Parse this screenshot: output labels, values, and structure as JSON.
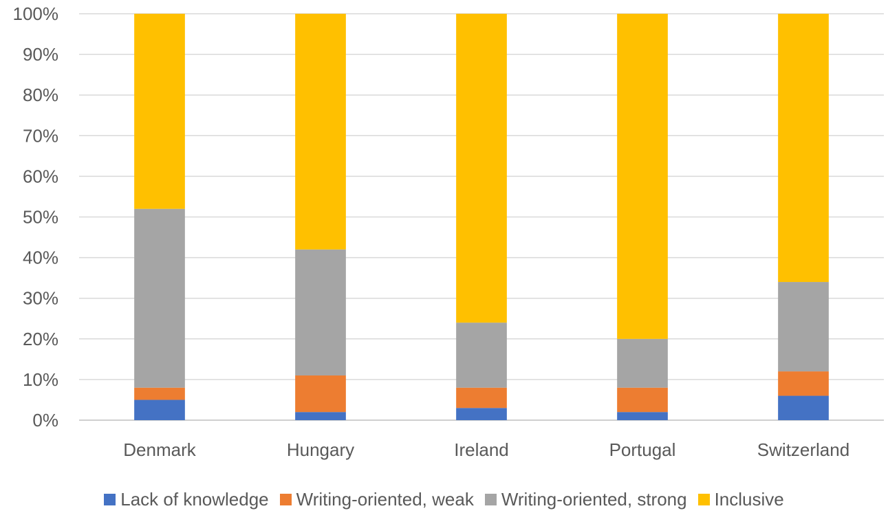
{
  "chart_data": {
    "type": "bar",
    "stacked": true,
    "percent": true,
    "title": "",
    "xlabel": "",
    "ylabel": "",
    "categories": [
      "Denmark",
      "Hungary",
      "Ireland",
      "Portugal",
      "Switzerland"
    ],
    "series": [
      {
        "name": "Lack of knowledge",
        "color": "#4472C4",
        "values": [
          5,
          2,
          3,
          2,
          6
        ]
      },
      {
        "name": "Writing-oriented, weak",
        "color": "#ED7D31",
        "values": [
          3,
          9,
          5,
          6,
          6
        ]
      },
      {
        "name": "Writing-oriented, strong",
        "color": "#A5A5A5",
        "values": [
          44,
          31,
          16,
          12,
          22
        ]
      },
      {
        "name": "Inclusive",
        "color": "#FFC000",
        "values": [
          48,
          58,
          76,
          80,
          66
        ]
      }
    ],
    "ylim": [
      0,
      100
    ],
    "yticks": [
      "0%",
      "10%",
      "20%",
      "30%",
      "40%",
      "50%",
      "60%",
      "70%",
      "80%",
      "90%",
      "100%"
    ],
    "grid": true,
    "legend_position": "bottom"
  }
}
